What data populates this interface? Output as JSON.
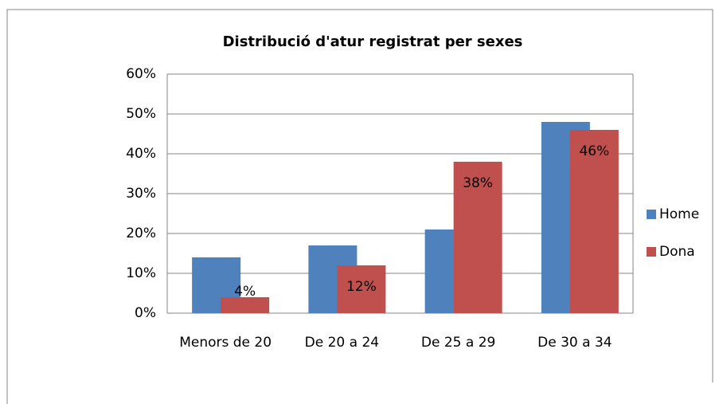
{
  "chart_data": {
    "type": "bar",
    "title": "Distribució d'atur registrat per sexes",
    "categories": [
      "Menors de 20",
      "De 20 a 24",
      "De 25 a 29",
      "De 30 a 34"
    ],
    "series": [
      {
        "name": "Home",
        "color": "#4f81bd",
        "values": [
          14,
          17,
          21,
          48
        ]
      },
      {
        "name": "Dona",
        "color": "#c0504d",
        "values": [
          4,
          12,
          38,
          46
        ],
        "value_labels": [
          "4%",
          "12%",
          "38%",
          "46%"
        ]
      }
    ],
    "ylim": [
      0,
      60
    ],
    "yticks": [
      {
        "value": 0,
        "label": "0%"
      },
      {
        "value": 10,
        "label": "10%"
      },
      {
        "value": 20,
        "label": "20%"
      },
      {
        "value": 30,
        "label": "30%"
      },
      {
        "value": 40,
        "label": "40%"
      },
      {
        "value": 50,
        "label": "50%"
      },
      {
        "value": 60,
        "label": "60%"
      }
    ],
    "grid": true,
    "legend": "right"
  }
}
